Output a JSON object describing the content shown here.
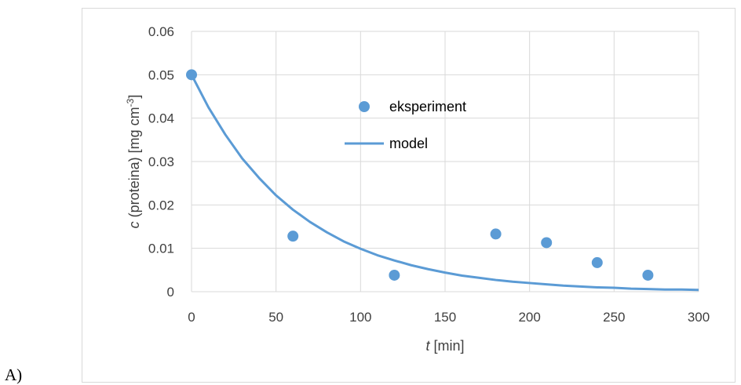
{
  "panel_label": "A)",
  "colors": {
    "series": "#5B9BD5",
    "grid": "#d9d9d9",
    "text": "#404040"
  },
  "chart_data": {
    "type": "scatter",
    "title": "",
    "xlabel_italic": "t",
    "xlabel_rest": " [min]",
    "ylabel_italic": "c",
    "ylabel_rest": " (proteina) [mg cm",
    "ylabel_sup": "-3",
    "ylabel_close": "]",
    "xlim": [
      0,
      300
    ],
    "ylim": [
      0,
      0.06
    ],
    "x_ticks": [
      "0",
      "50",
      "100",
      "150",
      "200",
      "250",
      "300"
    ],
    "y_ticks": [
      "0",
      "0.01",
      "0.02",
      "0.03",
      "0.04",
      "0.05",
      "0.06"
    ],
    "grid": true,
    "legend_position": "center",
    "series": [
      {
        "name": "eksperiment",
        "kind": "markers",
        "x": [
          0,
          60,
          120,
          180,
          210,
          240,
          270
        ],
        "y": [
          0.05,
          0.0128,
          0.0038,
          0.0133,
          0.0113,
          0.0067,
          0.0038
        ]
      },
      {
        "name": "model",
        "kind": "line",
        "x": [
          0,
          10,
          20,
          30,
          40,
          50,
          60,
          70,
          80,
          90,
          100,
          110,
          120,
          130,
          140,
          150,
          160,
          170,
          180,
          190,
          200,
          210,
          220,
          230,
          240,
          250,
          260,
          270,
          280,
          290,
          300
        ],
        "y": [
          0.05,
          0.0425,
          0.0362,
          0.0307,
          0.0262,
          0.0222,
          0.0189,
          0.0161,
          0.0137,
          0.0116,
          0.0099,
          0.0084,
          0.0072,
          0.0061,
          0.0052,
          0.0044,
          0.0037,
          0.0032,
          0.0027,
          0.0023,
          0.002,
          0.0017,
          0.0014,
          0.0012,
          0.001,
          0.0009,
          0.0007,
          0.0006,
          0.0005,
          0.0005,
          0.0004
        ]
      }
    ]
  }
}
